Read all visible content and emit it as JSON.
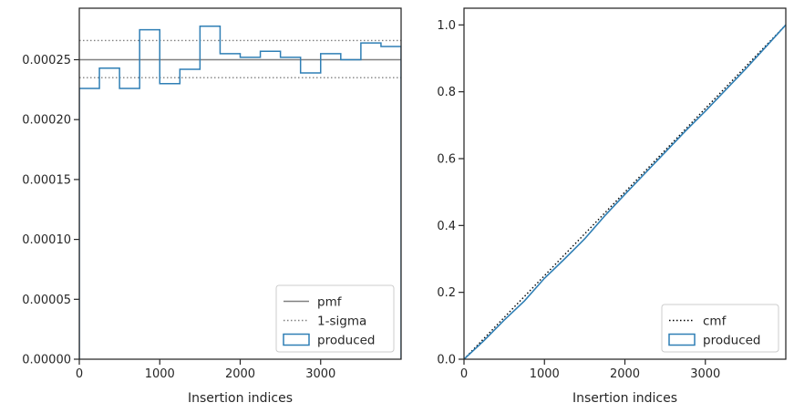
{
  "colors": {
    "produced": "#2f7fb5",
    "pmf": "#808080",
    "sigma": "#808080",
    "cmf": "#000000",
    "axes": "#262626"
  },
  "chart_data": [
    {
      "type": "step-histogram",
      "xlabel": "Insertion indices",
      "ylabel": "",
      "xlim": [
        0,
        4000
      ],
      "ylim": [
        0,
        0.000293
      ],
      "xticks": [
        0,
        1000,
        2000,
        3000
      ],
      "xtick_labels": [
        "0",
        "1000",
        "2000",
        "3000"
      ],
      "yticks": [
        0,
        5e-05,
        0.0001,
        0.00015,
        0.0002,
        0.00025
      ],
      "ytick_labels": [
        "0.00000",
        "0.00005",
        "0.00010",
        "0.00015",
        "0.00020",
        "0.00025"
      ],
      "hlines": [
        {
          "name": "pmf",
          "y": 0.00025,
          "style": "solid"
        },
        {
          "name": "1-sigma",
          "y": 0.000266,
          "style": "dotted"
        },
        {
          "name": "1-sigma",
          "y": 0.000235,
          "style": "dotted"
        }
      ],
      "series": [
        {
          "name": "produced",
          "bin_edges": [
            0,
            250,
            500,
            750,
            1000,
            1250,
            1500,
            1750,
            2000,
            2250,
            2500,
            2750,
            3000,
            3250,
            3500,
            3750,
            4000
          ],
          "values": [
            0.000226,
            0.000243,
            0.000226,
            0.000275,
            0.00023,
            0.000242,
            0.000278,
            0.000255,
            0.000252,
            0.000257,
            0.000252,
            0.000239,
            0.000255,
            0.00025,
            0.000264,
            0.000261
          ]
        }
      ],
      "legend": {
        "position": "lower right",
        "entries": [
          {
            "label": "pmf",
            "kind": "line-solid"
          },
          {
            "label": "1-sigma",
            "kind": "line-dotted"
          },
          {
            "label": "produced",
            "kind": "patch"
          }
        ]
      }
    },
    {
      "type": "line",
      "xlabel": "Insertion indices",
      "ylabel": "",
      "xlim": [
        0,
        4000
      ],
      "ylim": [
        0,
        1.05
      ],
      "xticks": [
        0,
        1000,
        2000,
        3000
      ],
      "xtick_labels": [
        "0",
        "1000",
        "2000",
        "3000"
      ],
      "yticks": [
        0,
        0.2,
        0.4,
        0.6,
        0.8,
        1.0
      ],
      "ytick_labels": [
        "0.0",
        "0.2",
        "0.4",
        "0.6",
        "0.8",
        "1.0"
      ],
      "series": [
        {
          "name": "cmf",
          "style": "dotted",
          "x": [
            0,
            4000
          ],
          "y": [
            0,
            1.0
          ]
        },
        {
          "name": "produced",
          "style": "step",
          "x": [
            0,
            250,
            500,
            750,
            1000,
            1250,
            1500,
            1750,
            2000,
            2250,
            2500,
            2750,
            3000,
            3250,
            3500,
            3750,
            4000
          ],
          "y": [
            0,
            0.056,
            0.117,
            0.174,
            0.242,
            0.3,
            0.36,
            0.429,
            0.493,
            0.556,
            0.619,
            0.682,
            0.742,
            0.805,
            0.868,
            0.934,
            1.0
          ]
        }
      ],
      "legend": {
        "position": "lower right",
        "entries": [
          {
            "label": "cmf",
            "kind": "line-dotted"
          },
          {
            "label": "produced",
            "kind": "patch"
          }
        ]
      }
    }
  ]
}
